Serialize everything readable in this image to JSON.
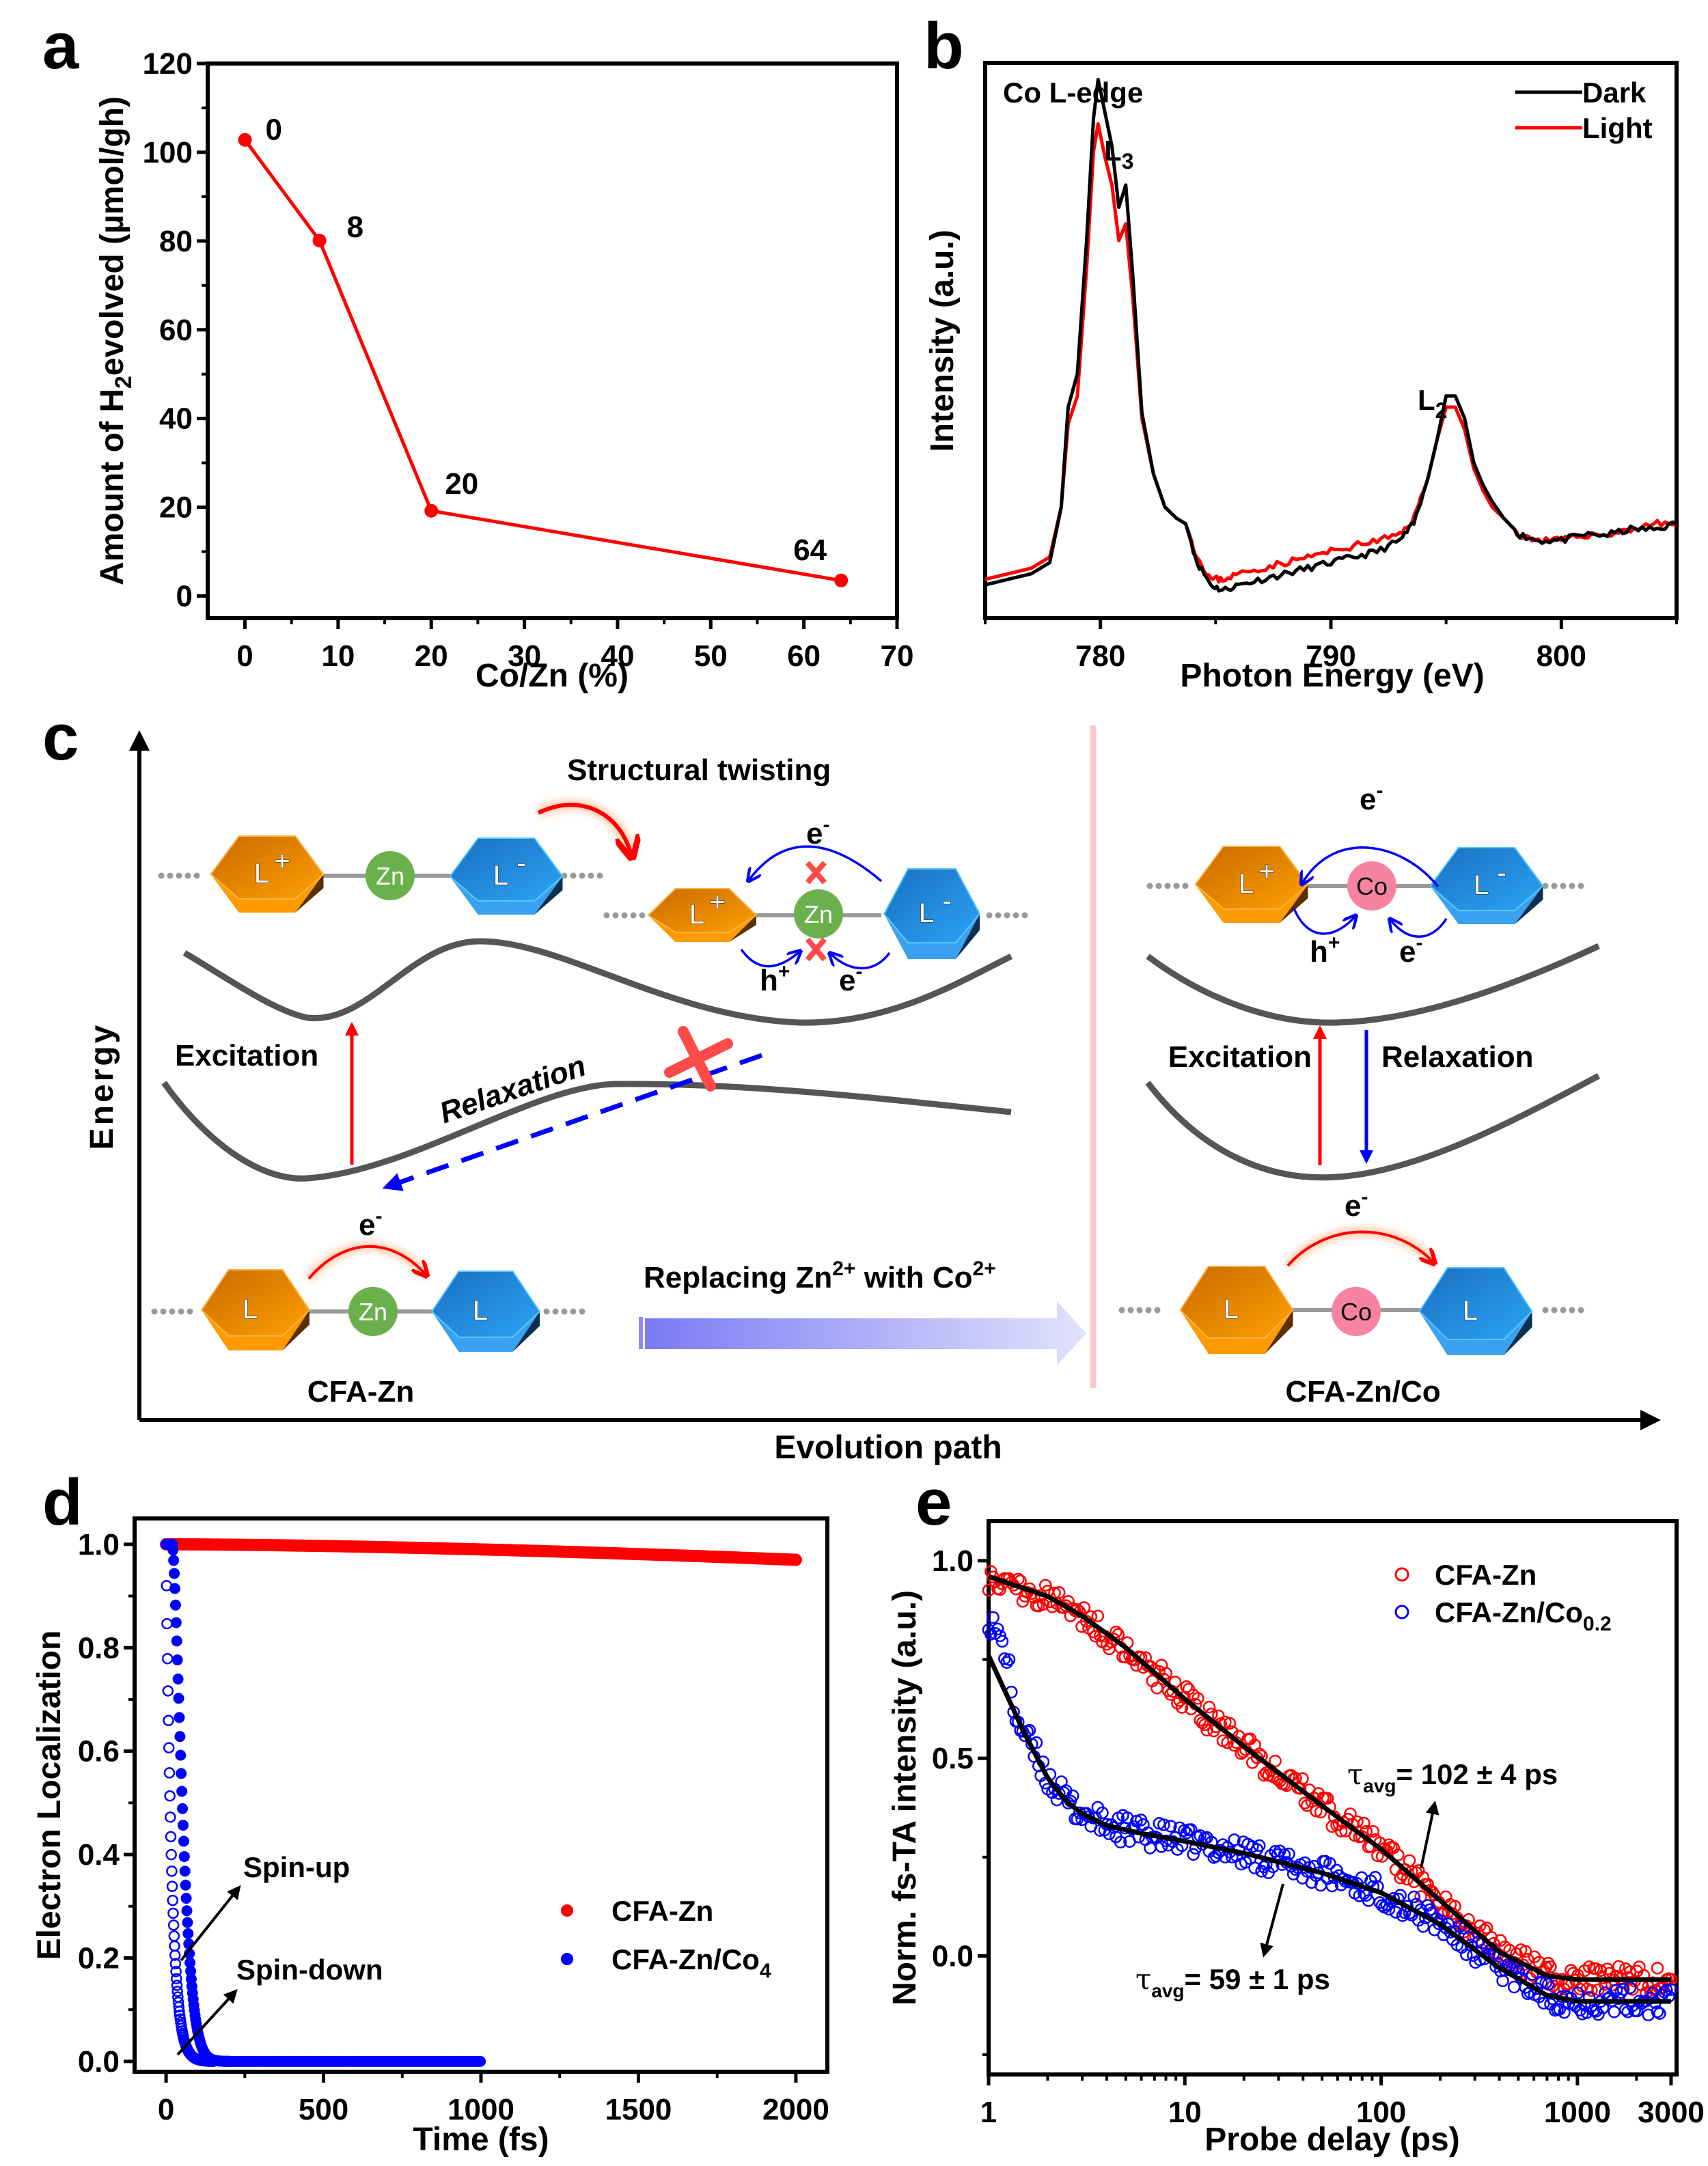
{
  "figure": {
    "panels": [
      "a",
      "b",
      "c",
      "d",
      "e"
    ]
  },
  "chart_data": [
    {
      "id": "a",
      "type": "line",
      "panel_label": "a",
      "title": "",
      "xlabel": "Co/Zn (%)",
      "ylabel_parts": {
        "pre": "Amount of H",
        "sub": "2",
        "post": "evolved  (µmol/gh)"
      },
      "xlim": [
        -4,
        70
      ],
      "ylim": [
        -5,
        120
      ],
      "xticks": [
        0,
        10,
        20,
        30,
        40,
        50,
        60,
        70
      ],
      "yticks": [
        0,
        20,
        40,
        60,
        80,
        100,
        120
      ],
      "series": [
        {
          "name": "H2 evolution",
          "color": "#ff0000",
          "x": [
            0,
            8,
            20,
            64
          ],
          "y": [
            102.8,
            80.1,
            19.2,
            3.5
          ],
          "point_labels": [
            "0",
            "8",
            "20",
            "64"
          ]
        }
      ],
      "grid": false
    },
    {
      "id": "b",
      "type": "line",
      "panel_label": "b",
      "title": "Co L-edge",
      "xlabel": "Photon Energy (eV)",
      "ylabel": "Intensity (a.u.)",
      "xlim": [
        775,
        805
      ],
      "ylim": [
        0,
        1.0
      ],
      "xticks": [
        780,
        790,
        800
      ],
      "legend": {
        "position": "top-right",
        "entries": [
          {
            "label": "Dark",
            "color": "#000000"
          },
          {
            "label": "Light",
            "color": "#ff0000"
          }
        ]
      },
      "annotations": [
        {
          "text": "L",
          "sub": "3",
          "x": 780.9,
          "y": 0.96
        },
        {
          "text": "L",
          "sub": "2",
          "x": 795.2,
          "y": 0.5
        }
      ],
      "series": [
        {
          "name": "Dark",
          "color": "#000000",
          "x": [
            775,
            776,
            777,
            777.8,
            778.3,
            778.6,
            779.0,
            779.4,
            779.7,
            779.9,
            780.2,
            780.5,
            780.8,
            781.1,
            781.4,
            781.8,
            782.3,
            782.8,
            783.3,
            783.7,
            784.2,
            784.8,
            785.3,
            786,
            787,
            788,
            789,
            790,
            791,
            792,
            793,
            793.6,
            794.2,
            794.6,
            795.0,
            795.4,
            795.8,
            796.2,
            796.6,
            797.0,
            797.5,
            798.2,
            799,
            800,
            801,
            802,
            803,
            804,
            805
          ],
          "y": [
            0.06,
            0.07,
            0.08,
            0.1,
            0.2,
            0.38,
            0.44,
            0.68,
            0.9,
            0.97,
            0.91,
            0.85,
            0.74,
            0.78,
            0.62,
            0.37,
            0.26,
            0.2,
            0.18,
            0.17,
            0.1,
            0.06,
            0.05,
            0.06,
            0.07,
            0.08,
            0.09,
            0.1,
            0.11,
            0.12,
            0.14,
            0.17,
            0.25,
            0.32,
            0.4,
            0.4,
            0.36,
            0.28,
            0.24,
            0.21,
            0.18,
            0.15,
            0.14,
            0.14,
            0.15,
            0.15,
            0.16,
            0.16,
            0.17
          ]
        },
        {
          "name": "Light",
          "color": "#ff0000",
          "x": [
            775,
            776,
            777,
            777.8,
            778.3,
            778.6,
            779.0,
            779.4,
            779.7,
            779.9,
            780.2,
            780.5,
            780.8,
            781.1,
            781.4,
            781.8,
            782.3,
            782.8,
            783.3,
            783.7,
            784.2,
            784.8,
            785.3,
            786,
            787,
            788,
            789,
            790,
            791,
            792,
            793,
            793.6,
            794.2,
            794.6,
            795.0,
            795.4,
            795.8,
            796.2,
            796.6,
            797.0,
            797.5,
            798.2,
            799,
            800,
            801,
            802,
            803,
            804,
            805
          ],
          "y": [
            0.07,
            0.08,
            0.09,
            0.11,
            0.2,
            0.35,
            0.4,
            0.63,
            0.84,
            0.89,
            0.83,
            0.78,
            0.68,
            0.71,
            0.58,
            0.36,
            0.26,
            0.2,
            0.18,
            0.17,
            0.11,
            0.07,
            0.07,
            0.08,
            0.09,
            0.1,
            0.11,
            0.12,
            0.13,
            0.14,
            0.15,
            0.18,
            0.25,
            0.32,
            0.38,
            0.38,
            0.34,
            0.27,
            0.23,
            0.2,
            0.18,
            0.15,
            0.14,
            0.14,
            0.15,
            0.15,
            0.16,
            0.17,
            0.17
          ]
        }
      ],
      "grid": false
    },
    {
      "id": "d",
      "type": "scatter",
      "panel_label": "d",
      "xlabel": "Time (fs)",
      "ylabel": "Electron Localization",
      "xlim": [
        -100,
        2100
      ],
      "ylim": [
        -0.02,
        1.05
      ],
      "xticks": [
        0,
        500,
        1000,
        1500,
        2000
      ],
      "yticks": [
        0.0,
        0.2,
        0.4,
        0.6,
        0.8,
        1.0
      ],
      "legend": {
        "position": "bottom-right",
        "entries": [
          {
            "label": "CFA-Zn",
            "color": "#ff0000"
          },
          {
            "label_pre": "CFA-Zn/Co",
            "label_sub": "4",
            "color": "#0000ff"
          }
        ]
      },
      "annotations": [
        {
          "text": "Spin-up",
          "x": 100,
          "y": 0.4
        },
        {
          "text": "Spin-down",
          "x": 90,
          "y": 0.14
        }
      ],
      "series": [
        {
          "name": "CFA-Zn",
          "color": "#ff0000",
          "model": "linear-ish",
          "x_range": [
            0,
            2000
          ],
          "y_start": 1.0,
          "y_end": 0.97
        },
        {
          "name": "CFA-Zn/Co4 spin-up",
          "color": "#0000ff",
          "model": "decay",
          "x_range": [
            0,
            1000
          ],
          "tau_fs": 40,
          "delay_fs": 20
        },
        {
          "name": "CFA-Zn/Co4 spin-down",
          "color": "#0000ff",
          "model": "decay",
          "x_range": [
            0,
            1000
          ],
          "tau_fs": 18,
          "delay_fs": 0
        }
      ],
      "grid": false
    },
    {
      "id": "e",
      "type": "scatter",
      "panel_label": "e",
      "xlabel": "Probe delay (ps)",
      "ylabel": "Norm. fs-TA intensity (a.u.)",
      "xscale": "log",
      "xlim": [
        1,
        3200
      ],
      "ylim": [
        -0.3,
        1.1
      ],
      "xticks": [
        1,
        10,
        100,
        1000,
        3000
      ],
      "yticks": [
        0.0,
        0.5,
        1.0
      ],
      "legend": {
        "position": "top-right",
        "entries": [
          {
            "label": "CFA-Zn",
            "color": "#ff0000"
          },
          {
            "label_pre": "CFA-Zn/Co",
            "label_sub": "0.2",
            "color": "#0000ff"
          }
        ]
      },
      "annotations": [
        {
          "pre": "τ",
          "sub": "avg",
          "post": "= 102 ± 4 ps",
          "series": "CFA-Zn"
        },
        {
          "pre": "τ",
          "sub": "avg",
          "post": "= 59 ± 1 ps",
          "series": "CFA-Zn/Co0.2"
        }
      ],
      "fits": [
        {
          "name": "CFA-Zn fit",
          "x": [
            1,
            2,
            3,
            5,
            10,
            20,
            50,
            100,
            200,
            400,
            700,
            1000,
            2000,
            3000
          ],
          "y": [
            0.96,
            0.91,
            0.86,
            0.78,
            0.65,
            0.53,
            0.38,
            0.27,
            0.14,
            0.01,
            -0.05,
            -0.06,
            -0.06,
            -0.06
          ]
        },
        {
          "name": "CFA-Zn/Co0.2 fit",
          "x": [
            1,
            1.5,
            2,
            2.5,
            3,
            4,
            6,
            10,
            20,
            50,
            100,
            200,
            400,
            700,
            1000,
            2000,
            3000
          ],
          "y": [
            0.76,
            0.57,
            0.45,
            0.39,
            0.36,
            0.33,
            0.31,
            0.29,
            0.26,
            0.21,
            0.16,
            0.08,
            -0.03,
            -0.1,
            -0.115,
            -0.115,
            -0.115
          ]
        }
      ],
      "series": [
        {
          "name": "CFA-Zn",
          "color": "#ff0000"
        },
        {
          "name": "CFA-Zn/Co0.2",
          "color": "#0000ff"
        }
      ],
      "grid": false
    }
  ],
  "diagram_c": {
    "panel_label": "c",
    "y_axis_label": "Energy",
    "x_axis_label": "Evolution path",
    "structural_twisting": "Structural twisting",
    "excitation": "Excitation",
    "relaxation": "Relaxation",
    "electron": "e",
    "electron_sup": "-",
    "hole": "h",
    "hole_sup": "+",
    "replacing": {
      "pre": "Replacing Zn",
      "sup1": "2+",
      "mid": " with Co",
      "sup2": "2+"
    },
    "left_caption": "CFA-Zn",
    "right_caption": "CFA-Zn/Co",
    "ligand": "L",
    "ligand_plus": "+",
    "ligand_minus": "-",
    "metal_zn": "Zn",
    "metal_co": "Co",
    "colors": {
      "ligand_donor": "#f39200",
      "ligand_acceptor": "#2196f3",
      "zn": "#6ab04c",
      "co": "#f783a0",
      "curve": "#555555",
      "excitation": "#ff0000",
      "relaxation": "#0000ff",
      "blocked": "#ff4a4a"
    }
  }
}
